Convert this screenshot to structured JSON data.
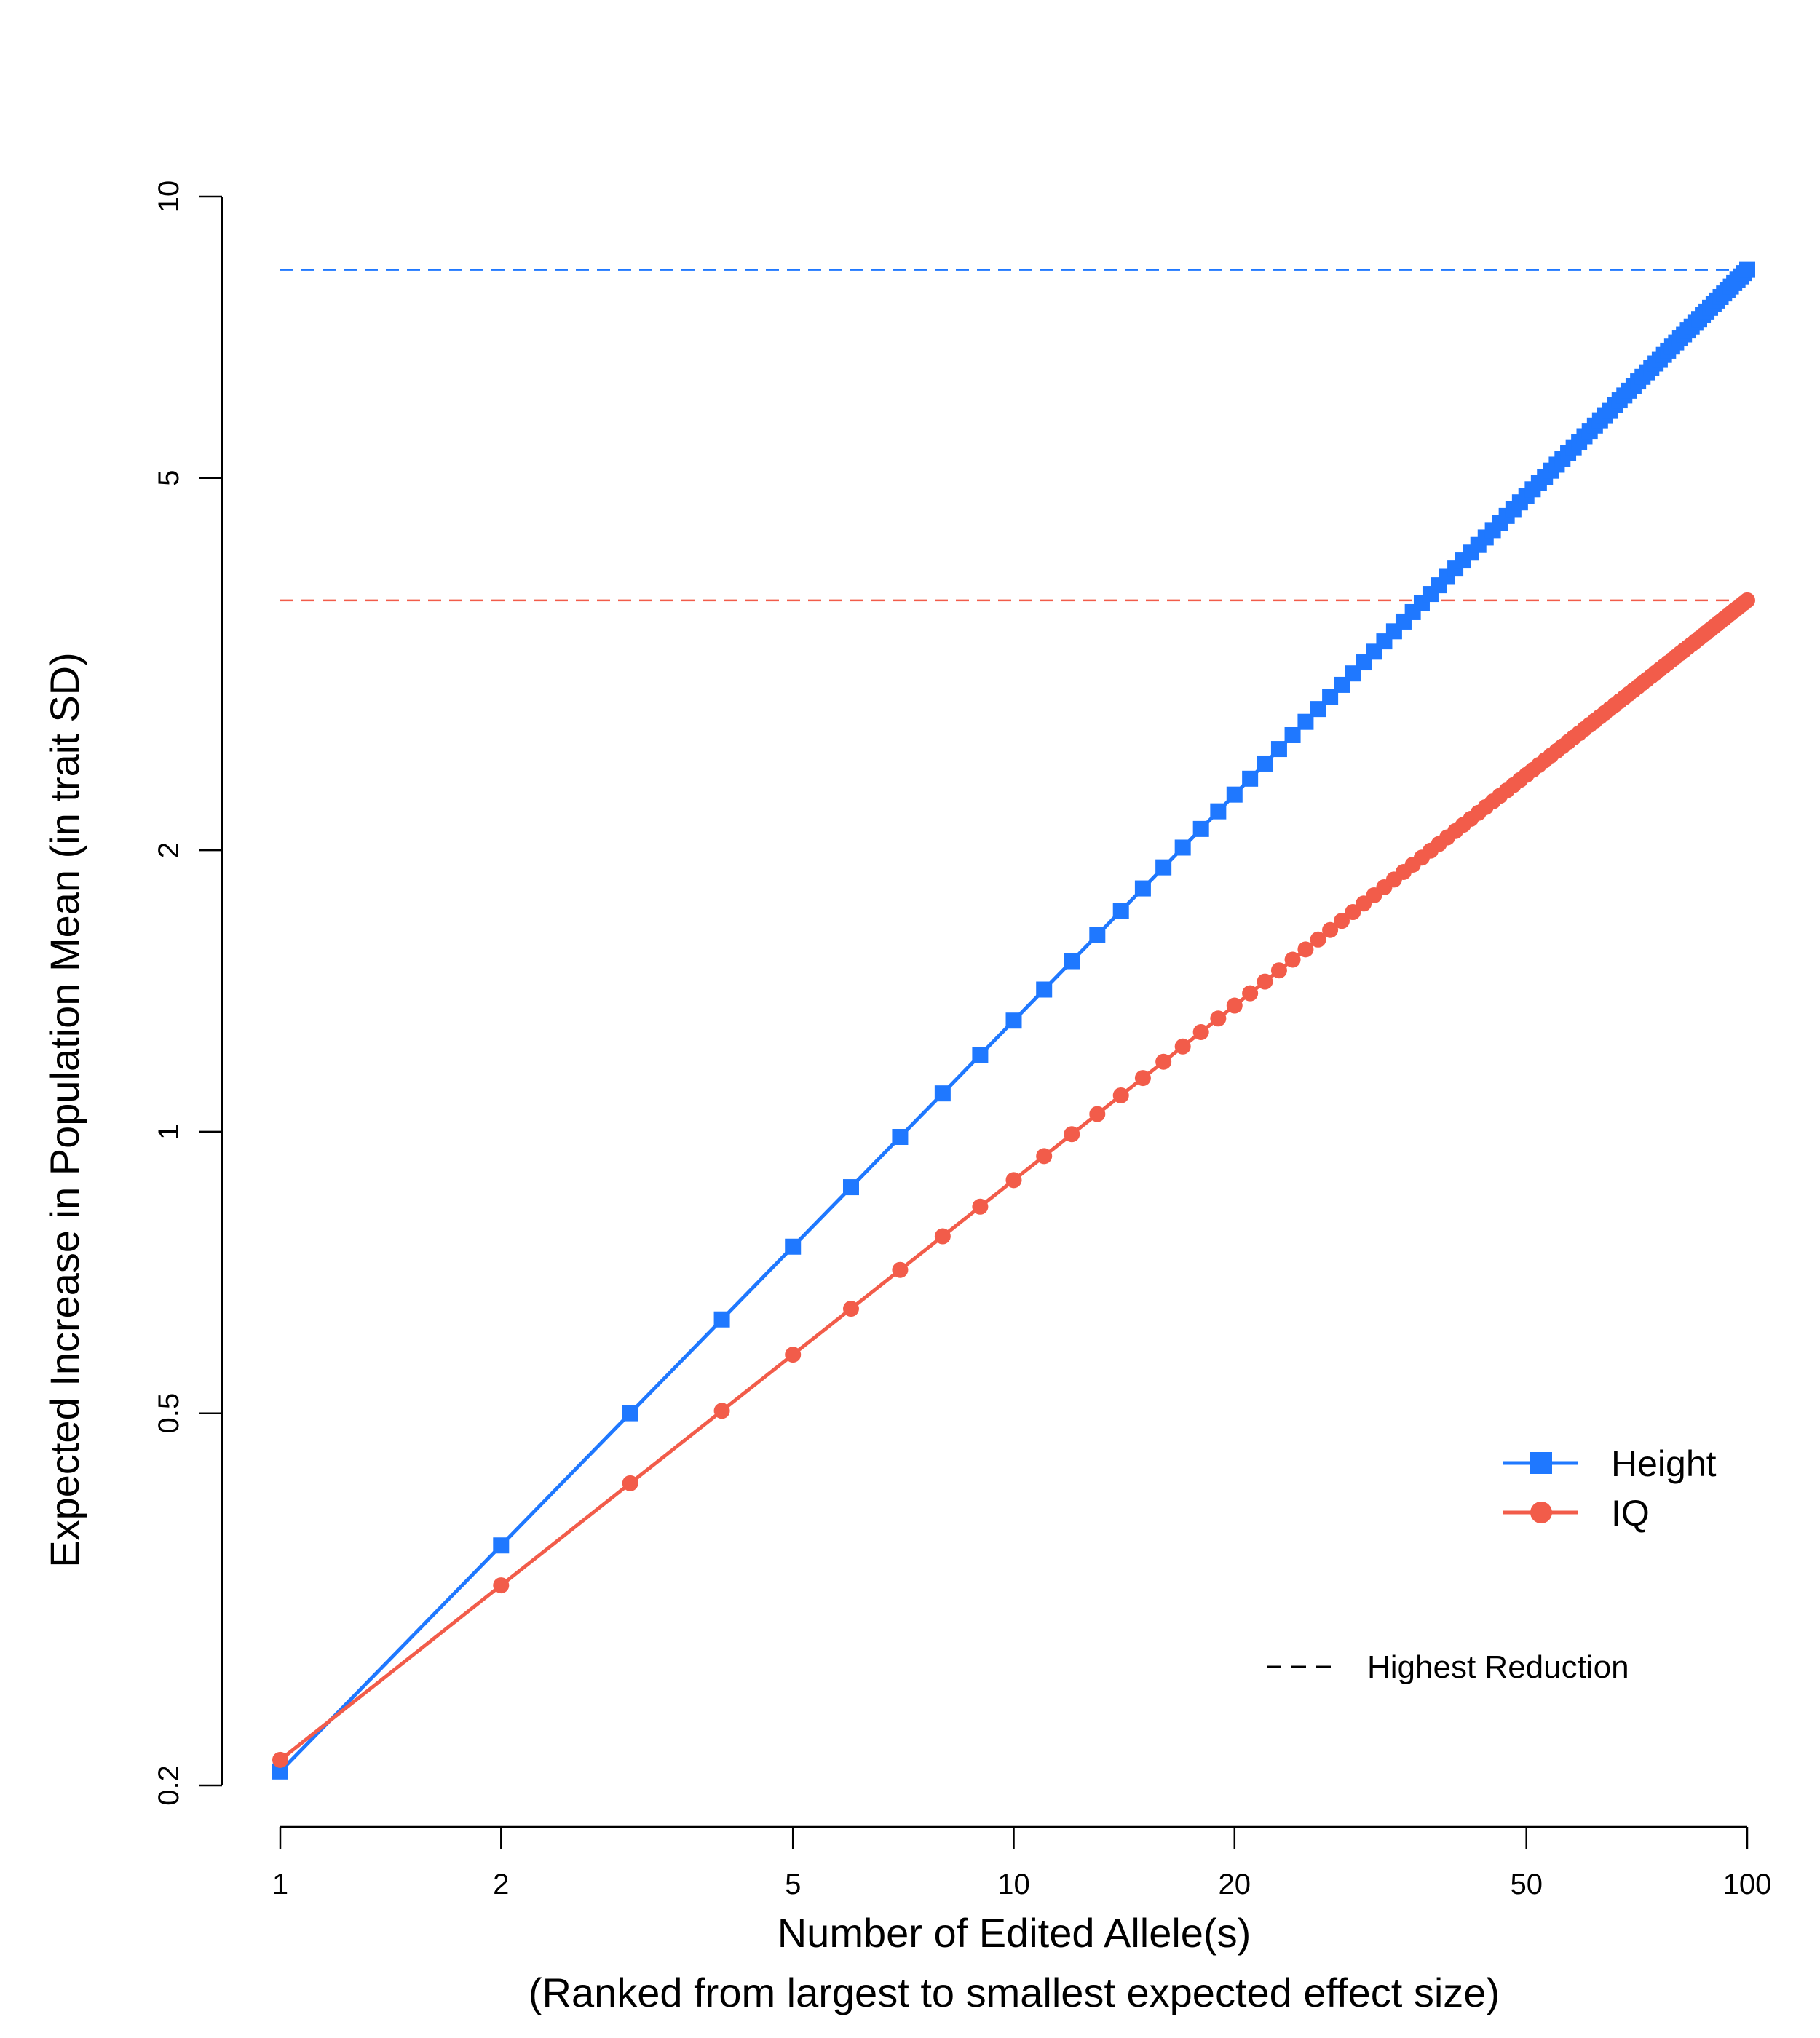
{
  "chart_data": {
    "type": "line",
    "title": "",
    "xlabel": "Number of Edited Allele(s)",
    "xlabel_sub": "(Ranked from largest to smallest expected effect size)",
    "ylabel": "Expected Increase in Population Mean (in trait SD)",
    "x_scale": "log",
    "y_scale": "log",
    "xlim": [
      1,
      100
    ],
    "ylim": [
      0.2,
      10
    ],
    "x_ticks": [
      1,
      2,
      5,
      10,
      20,
      50,
      100
    ],
    "x_tick_labels": [
      "1",
      "2",
      "5",
      "10",
      "20",
      "50",
      "100"
    ],
    "y_ticks": [
      0.2,
      0.5,
      1,
      2,
      5,
      10
    ],
    "y_tick_labels": [
      "0.2",
      "0.5",
      "1",
      "2",
      "5",
      "10"
    ],
    "grid": false,
    "legend_placement": "bottom-right",
    "series": [
      {
        "name": "Height",
        "color": "#1f78ff",
        "marker": "square",
        "x_range": [
          1,
          100
        ],
        "y_start": 0.207,
        "y_end": 8.35,
        "reference_y": 8.35
      },
      {
        "name": "IQ",
        "color": "#f25c4a",
        "marker": "circle",
        "x_range": [
          1,
          100
        ],
        "y_start": 0.213,
        "y_end": 3.7,
        "reference_y": 3.7
      }
    ],
    "reference_legend_label": "Highest Reduction"
  }
}
